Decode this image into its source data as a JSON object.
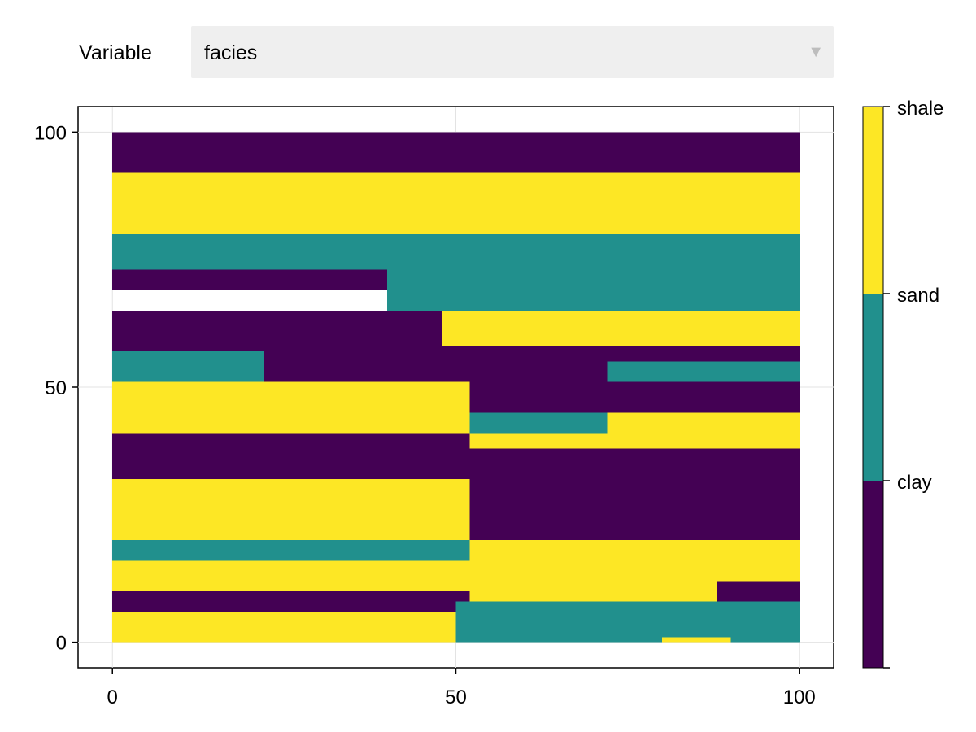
{
  "controls": {
    "variable_label": "Variable",
    "selected_value": "facies",
    "caret_glyph": "▼"
  },
  "chart_data": {
    "type": "heatmap",
    "variable": "facies",
    "grid": true,
    "xlim": [
      -5,
      105
    ],
    "ylim": [
      -5,
      105
    ],
    "x_ticks": [
      0,
      50,
      100
    ],
    "y_ticks": [
      0,
      50,
      100
    ],
    "x_tick_labels": [
      "0",
      "50",
      "100"
    ],
    "y_tick_labels": [
      "0",
      "50",
      "100"
    ],
    "categories": [
      "clay",
      "sand",
      "shale"
    ],
    "colorbar_labels": [
      "shale",
      "sand",
      "clay"
    ],
    "colors": {
      "clay": "#440154",
      "sand": "#21908d",
      "shale": "#fde725"
    },
    "cell_size": 1,
    "extent": {
      "x": [
        0,
        100
      ],
      "y": [
        0,
        100
      ]
    },
    "layers": [
      {
        "facies": "clay",
        "y_range": [
          92,
          100
        ],
        "x_range": [
          0,
          100
        ]
      },
      {
        "facies": "shale",
        "y_range": [
          80,
          92
        ],
        "x_range": [
          0,
          100
        ]
      },
      {
        "facies": "sand",
        "y_range": [
          73,
          80
        ],
        "x_range": [
          0,
          100
        ]
      },
      {
        "facies": "clay",
        "y_range": [
          69,
          73
        ],
        "x_range": [
          0,
          40
        ]
      },
      {
        "facies": "sand",
        "y_range": [
          65,
          73
        ],
        "x_range": [
          40,
          100
        ]
      },
      {
        "facies": "shale",
        "y_range": [
          58,
          65
        ],
        "x_range": [
          48,
          100
        ]
      },
      {
        "facies": "clay",
        "y_range": [
          57,
          65
        ],
        "x_range": [
          0,
          48
        ]
      },
      {
        "facies": "sand",
        "y_range": [
          51,
          57
        ],
        "x_range": [
          0,
          22
        ]
      },
      {
        "facies": "clay",
        "y_range": [
          51,
          58
        ],
        "x_range": [
          22,
          100
        ]
      },
      {
        "facies": "sand",
        "y_range": [
          48,
          55
        ],
        "x_range": [
          72,
          100
        ]
      },
      {
        "facies": "shale",
        "y_range": [
          41,
          51
        ],
        "x_range": [
          0,
          52
        ]
      },
      {
        "facies": "clay",
        "y_range": [
          45,
          51
        ],
        "x_range": [
          52,
          100
        ]
      },
      {
        "facies": "shale",
        "y_range": [
          38,
          45
        ],
        "x_range": [
          50,
          100
        ]
      },
      {
        "facies": "sand",
        "y_range": [
          41,
          45
        ],
        "x_range": [
          52,
          72
        ]
      },
      {
        "facies": "clay",
        "y_range": [
          32,
          41
        ],
        "x_range": [
          0,
          52
        ]
      },
      {
        "facies": "clay",
        "y_range": [
          20,
          38
        ],
        "x_range": [
          52,
          100
        ]
      },
      {
        "facies": "shale",
        "y_range": [
          20,
          32
        ],
        "x_range": [
          0,
          52
        ]
      },
      {
        "facies": "sand",
        "y_range": [
          16,
          20
        ],
        "x_range": [
          0,
          52
        ]
      },
      {
        "facies": "shale",
        "y_range": [
          10,
          16
        ],
        "x_range": [
          0,
          52
        ]
      },
      {
        "facies": "shale",
        "y_range": [
          8,
          20
        ],
        "x_range": [
          52,
          100
        ]
      },
      {
        "facies": "clay",
        "y_range": [
          6,
          10
        ],
        "x_range": [
          0,
          52
        ]
      },
      {
        "facies": "clay",
        "y_range": [
          8,
          12
        ],
        "x_range": [
          88,
          100
        ]
      },
      {
        "facies": "shale",
        "y_range": [
          0,
          6
        ],
        "x_range": [
          0,
          50
        ]
      },
      {
        "facies": "sand",
        "y_range": [
          0,
          8
        ],
        "x_range": [
          50,
          100
        ]
      },
      {
        "facies": "shale",
        "y_range": [
          0,
          1
        ],
        "x_range": [
          80,
          90
        ]
      }
    ]
  }
}
